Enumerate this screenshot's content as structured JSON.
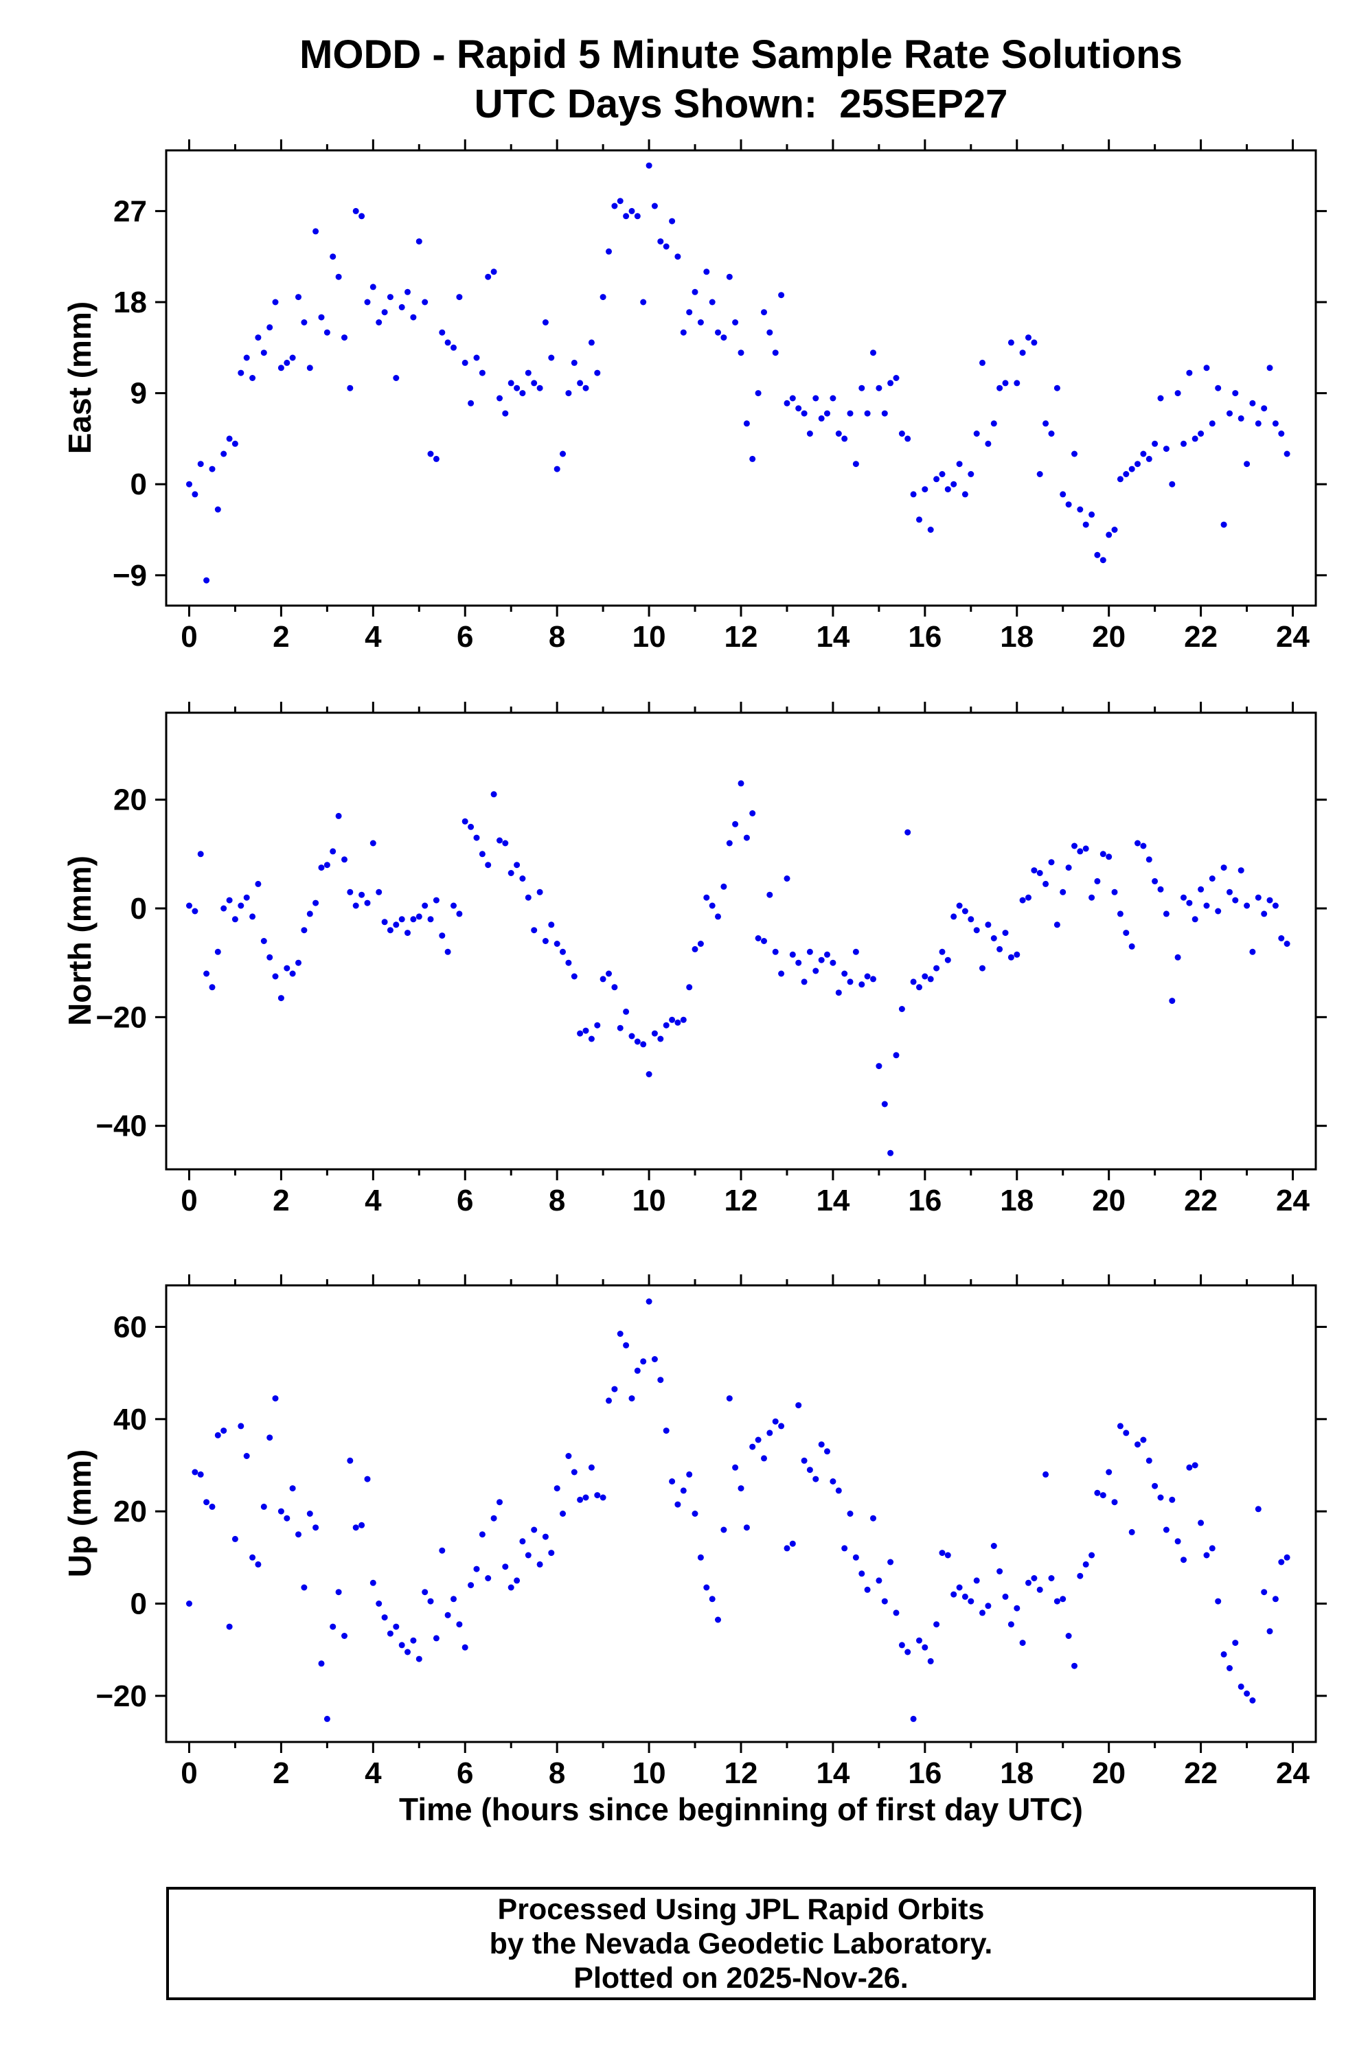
{
  "title": {
    "line1": "MODD - Rapid 5 Minute Sample Rate Solutions",
    "line2": "UTC Days Shown:  25SEP27"
  },
  "xlabel": "Time (hours since beginning of first day UTC)",
  "footer": {
    "line1": "Processed Using JPL Rapid Orbits",
    "line2": "by the Nevada Geodetic Laboratory.",
    "line3": "Plotted on 2025-Nov-26."
  },
  "point_color": "#0000ee",
  "frame_color": "#000000",
  "chart_data": [
    {
      "type": "scatter",
      "ylabel": "East (mm)",
      "xlim": [
        -0.5,
        24.5
      ],
      "ylim": [
        -12,
        33
      ],
      "xticks": [
        0,
        2,
        4,
        6,
        8,
        10,
        12,
        14,
        16,
        18,
        20,
        22,
        24
      ],
      "xminor_step": 1,
      "yticks": [
        -9,
        0,
        9,
        18,
        27
      ],
      "x_start": 0,
      "x_step": 0.125,
      "y": [
        0,
        -1,
        2,
        -9.5,
        1.5,
        -2.5,
        3,
        4.5,
        4,
        11,
        12.5,
        10.5,
        14.5,
        13,
        15.5,
        18,
        11.5,
        12,
        12.5,
        18.5,
        16,
        11.5,
        25,
        16.5,
        15,
        22.5,
        20.5,
        14.5,
        9.5,
        27,
        26.5,
        18,
        19.5,
        16,
        17,
        18.5,
        10.5,
        17.5,
        19,
        16.5,
        24,
        18,
        3,
        2.5,
        15,
        14,
        13.5,
        18.5,
        12,
        8,
        12.5,
        11,
        20.5,
        21,
        8.5,
        7,
        10,
        9.5,
        9,
        11,
        10,
        9.5,
        16,
        12.5,
        1.5,
        3,
        9,
        12,
        10,
        9.5,
        14,
        11,
        18.5,
        23,
        27.5,
        28,
        26.5,
        27,
        26.5,
        18,
        31.5,
        27.5,
        24,
        23.5,
        26,
        22.5,
        15,
        17,
        19,
        16,
        21,
        18,
        15,
        14.5,
        20.5,
        16,
        13,
        6,
        2.5,
        9,
        17,
        15,
        13,
        18.7,
        8,
        8.5,
        7.5,
        7,
        5,
        8.5,
        6.5,
        7,
        8.5,
        5,
        4.5,
        7,
        2,
        9.5,
        7,
        13,
        9.5,
        7,
        10,
        10.5,
        5,
        4.5,
        -1,
        -3.5,
        -0.5,
        -4.5,
        0.5,
        1,
        -0.5,
        0,
        2,
        -1,
        1,
        5,
        12,
        4,
        6,
        9.5,
        10,
        14,
        10,
        13,
        14.5,
        14,
        1,
        6,
        5,
        9.5,
        -1,
        -2,
        3,
        -2.5,
        -4,
        -3,
        -7,
        -7.5,
        -5,
        -4.5,
        0.5,
        1,
        1.5,
        2,
        3,
        2.5,
        4,
        8.5,
        3.5,
        0,
        9,
        4,
        11,
        4.5,
        5,
        11.5,
        6,
        9.5,
        -4,
        7,
        9,
        6.5,
        2,
        8,
        6,
        7.5,
        11.5,
        6,
        5,
        3
      ]
    },
    {
      "type": "scatter",
      "ylabel": "North (mm)",
      "xlim": [
        -0.5,
        24.5
      ],
      "ylim": [
        -48,
        36
      ],
      "xticks": [
        0,
        2,
        4,
        6,
        8,
        10,
        12,
        14,
        16,
        18,
        20,
        22,
        24
      ],
      "xminor_step": 1,
      "yticks": [
        -40,
        -20,
        0,
        20
      ],
      "x_start": 0,
      "x_step": 0.125,
      "y": [
        0.5,
        -0.5,
        10,
        -12,
        -14.5,
        -8,
        0,
        1.5,
        -2,
        0.5,
        2,
        -1.5,
        4.5,
        -6,
        -9,
        -12.5,
        -16.5,
        -11,
        -12,
        -10,
        -4,
        -1,
        1,
        7.5,
        8,
        10.5,
        17,
        9,
        3,
        0.5,
        2.5,
        1,
        12,
        3,
        -2.5,
        -4,
        -3,
        -2,
        -4.5,
        -2,
        -1.5,
        0.5,
        -2,
        1.5,
        -5,
        -8,
        0.5,
        -1,
        16,
        15,
        13,
        10,
        8,
        21,
        12.5,
        12,
        6.5,
        8,
        5.5,
        2,
        -4,
        3,
        -6,
        -3,
        -6.5,
        -8,
        -10,
        -12.5,
        -23,
        -22.5,
        -24,
        -21.5,
        -13,
        -12,
        -14.5,
        -22,
        -19,
        -23.5,
        -24.5,
        -25,
        -30.5,
        -23,
        -24,
        -21.5,
        -20.5,
        -21,
        -20.5,
        -14.5,
        -7.5,
        -6.5,
        2,
        0.5,
        -1.5,
        4,
        12,
        15.5,
        23,
        13,
        17.5,
        -5.5,
        -6,
        2.5,
        -8,
        -12,
        5.5,
        -8.5,
        -10,
        -13.5,
        -8,
        -11.5,
        -9.5,
        -8.5,
        -10,
        -15.5,
        -12,
        -13.5,
        -8,
        -14,
        -12.5,
        -13,
        -29,
        -36,
        -45,
        -27,
        -18.5,
        14,
        -13.5,
        -14.5,
        -12.5,
        -13,
        -11,
        -8,
        -9.5,
        -1.5,
        0.5,
        -0.5,
        -2,
        -4,
        -11,
        -3,
        -5.5,
        -7.5,
        -4.5,
        -9,
        -8.5,
        1.5,
        2,
        7,
        6.5,
        4.5,
        8.5,
        -3,
        3,
        7.5,
        11.5,
        10.5,
        11,
        2,
        5,
        10,
        9.5,
        3,
        -1,
        -4.5,
        -7,
        12,
        11.5,
        9,
        5,
        3.5,
        -1,
        -17,
        -9,
        2,
        1,
        -2,
        3.5,
        0.5,
        5.5,
        -0.5,
        7.5,
        3,
        1.5,
        7,
        0.5,
        -8,
        2,
        -1,
        1.5,
        0.5,
        -5.5,
        -6.5
      ]
    },
    {
      "type": "scatter",
      "ylabel": "Up (mm)",
      "xlim": [
        -0.5,
        24.5
      ],
      "ylim": [
        -30,
        69
      ],
      "xticks": [
        0,
        2,
        4,
        6,
        8,
        10,
        12,
        14,
        16,
        18,
        20,
        22,
        24
      ],
      "xminor_step": 1,
      "yticks": [
        -20,
        0,
        20,
        40,
        60
      ],
      "x_start": 0,
      "x_step": 0.125,
      "y": [
        0,
        28.5,
        28,
        22,
        21,
        36.5,
        37.5,
        -5,
        14,
        38.5,
        32,
        10,
        8.5,
        21,
        36,
        44.5,
        20,
        18.5,
        25,
        15,
        3.5,
        19.5,
        16.5,
        -13,
        -25,
        -5,
        2.5,
        -7,
        31,
        16.5,
        17,
        27,
        4.5,
        0,
        -3,
        -6.5,
        -5,
        -9,
        -10.5,
        -8,
        -12,
        2.5,
        0.5,
        -7.5,
        11.5,
        -2.5,
        1,
        -4.5,
        -9.5,
        4,
        7.5,
        15,
        5.5,
        18.5,
        22,
        8,
        3.5,
        5,
        13.5,
        10.5,
        16,
        8.5,
        14.5,
        11,
        25,
        19.5,
        32,
        28.5,
        22.5,
        23,
        29.5,
        23.5,
        23,
        44,
        46.5,
        58.5,
        56,
        44.5,
        50.5,
        52.5,
        65.5,
        53,
        48.5,
        37.5,
        26.5,
        21.5,
        24.5,
        28,
        19.5,
        10,
        3.5,
        1,
        -3.5,
        16,
        44.5,
        29.5,
        25,
        16.5,
        34,
        35.5,
        31.5,
        37,
        39.5,
        38.5,
        12,
        13,
        43,
        31,
        29,
        27,
        34.5,
        33,
        26.5,
        24.5,
        12,
        19.5,
        10,
        6.5,
        3,
        18.5,
        5,
        0.5,
        9,
        -2,
        -9,
        -10.5,
        -25,
        -8,
        -9.5,
        -12.5,
        -4.5,
        11,
        10.5,
        2,
        3.5,
        1.5,
        0.5,
        5,
        -2,
        -0.5,
        12.5,
        7,
        1.5,
        -4.5,
        -1,
        -8.5,
        4.5,
        5.5,
        3,
        28,
        5.5,
        0.5,
        1,
        -7,
        -13.5,
        6,
        8.5,
        10.5,
        24,
        23.5,
        28.5,
        22,
        38.5,
        37,
        15.5,
        34.5,
        35.5,
        31,
        25.5,
        23,
        16,
        22.5,
        13.5,
        9.5,
        29.5,
        30,
        17.5,
        10.5,
        12,
        0.5,
        -11,
        -14,
        -8.5,
        -18,
        -19.5,
        -21,
        20.5,
        2.5,
        -6,
        1,
        9,
        10
      ]
    }
  ]
}
